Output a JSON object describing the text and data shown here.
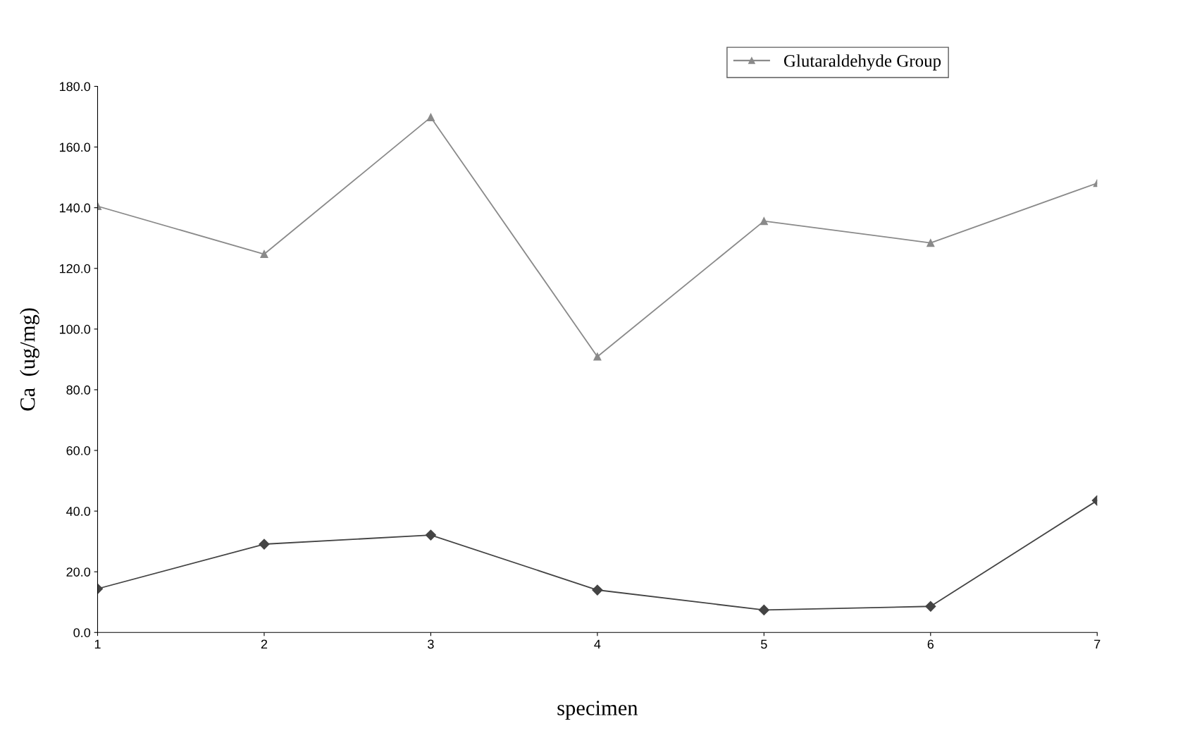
{
  "chart_data": {
    "type": "line",
    "xlabel": "specimen",
    "ylabel": "Ca  (ug/mg)",
    "x": [
      1,
      2,
      3,
      4,
      5,
      6,
      7
    ],
    "series": [
      {
        "color": "#444444",
        "marker": "diamond",
        "values": [
          14.4,
          29.1,
          32.1,
          14.0,
          7.4,
          8.6,
          43.5
        ]
      },
      {
        "name": "Glutaraldehyde Group",
        "color": "#8a8a8a",
        "marker": "triangle",
        "values": [
          140.5,
          124.7,
          169.8,
          90.9,
          135.6,
          128.4,
          148.1
        ]
      }
    ],
    "xlim": [
      1,
      7
    ],
    "xticks": [
      1,
      2,
      3,
      4,
      5,
      6,
      7
    ],
    "ylim": [
      0,
      180
    ],
    "yticks": [
      {
        "value": 0,
        "label": "0.0"
      },
      {
        "value": 20,
        "label": "20.0"
      },
      {
        "value": 40,
        "label": "40.0"
      },
      {
        "value": 60,
        "label": "60.0"
      },
      {
        "value": 80,
        "label": "80.0"
      },
      {
        "value": 100,
        "label": "100.0"
      },
      {
        "value": 120,
        "label": "120.0"
      },
      {
        "value": 140,
        "label": "140.0"
      },
      {
        "value": 160,
        "label": "160.0"
      },
      {
        "value": 180,
        "label": "180.0"
      }
    ],
    "grid": false,
    "legend": "top right",
    "line_style": "solid"
  }
}
